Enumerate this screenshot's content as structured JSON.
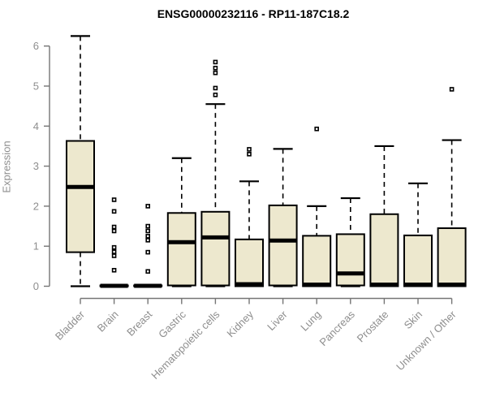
{
  "chart_data": {
    "type": "boxplot",
    "title": "ENSG00000232116 - RP11-187C18.2",
    "ylabel": "Expression",
    "xlabel": "",
    "ylim": [
      0,
      6
    ],
    "yticks": [
      0,
      1,
      2,
      3,
      4,
      5,
      6
    ],
    "grid": false,
    "legend": "none",
    "colors": {
      "box_fill": "#EDE8CE",
      "box_stroke": "#000000",
      "whisker": "#000000",
      "axis_line": "#757575",
      "axis_text": "#8e8e8e",
      "title_text": "#000000",
      "background": "#ffffff"
    },
    "categories": [
      "Bladder",
      "Brain",
      "Breast",
      "Gastric",
      "Hematopoietic cells",
      "Kidney",
      "Liver",
      "Lung",
      "Pancreas",
      "Prostate",
      "Skin",
      "Unknown / Other"
    ],
    "boxes": [
      {
        "category": "Bladder",
        "low": 0,
        "q1": 0.85,
        "median": 2.48,
        "q3": 3.63,
        "high": 6.25,
        "outliers": []
      },
      {
        "category": "Brain",
        "low": 0,
        "q1": 0.0,
        "median": 0.01,
        "q3": 0.02,
        "high": 0.02,
        "outliers": [
          2.16,
          1.87,
          1.48,
          1.38,
          0.97,
          0.86,
          0.76,
          0.4
        ]
      },
      {
        "category": "Breast",
        "low": 0,
        "q1": 0.0,
        "median": 0.01,
        "q3": 0.02,
        "high": 0.02,
        "outliers": [
          2.0,
          1.5,
          1.38,
          1.25,
          1.15,
          0.85,
          0.37
        ]
      },
      {
        "category": "Gastric",
        "low": 0,
        "q1": 0.02,
        "median": 1.1,
        "q3": 1.83,
        "high": 3.2,
        "outliers": []
      },
      {
        "category": "Hematopoietic cells",
        "low": 0,
        "q1": 0.02,
        "median": 1.22,
        "q3": 1.86,
        "high": 4.55,
        "outliers": [
          5.6,
          5.45,
          5.33,
          4.95,
          4.78
        ]
      },
      {
        "category": "Kidney",
        "low": 0,
        "q1": 0.0,
        "median": 0.05,
        "q3": 1.17,
        "high": 2.62,
        "outliers": [
          3.42,
          3.3
        ]
      },
      {
        "category": "Liver",
        "low": 0,
        "q1": 0.02,
        "median": 1.14,
        "q3": 2.02,
        "high": 3.43,
        "outliers": []
      },
      {
        "category": "Lung",
        "low": 0,
        "q1": 0.0,
        "median": 0.04,
        "q3": 1.26,
        "high": 2.0,
        "outliers": [
          3.93
        ]
      },
      {
        "category": "Pancreas",
        "low": 0,
        "q1": 0.02,
        "median": 0.32,
        "q3": 1.3,
        "high": 2.2,
        "outliers": []
      },
      {
        "category": "Prostate",
        "low": 0,
        "q1": 0.0,
        "median": 0.04,
        "q3": 1.8,
        "high": 3.5,
        "outliers": []
      },
      {
        "category": "Skin",
        "low": 0,
        "q1": 0.0,
        "median": 0.04,
        "q3": 1.27,
        "high": 2.57,
        "outliers": []
      },
      {
        "category": "Unknown / Other",
        "low": 0,
        "q1": 0.0,
        "median": 0.04,
        "q3": 1.45,
        "high": 3.65,
        "outliers": [
          4.92
        ]
      }
    ]
  }
}
